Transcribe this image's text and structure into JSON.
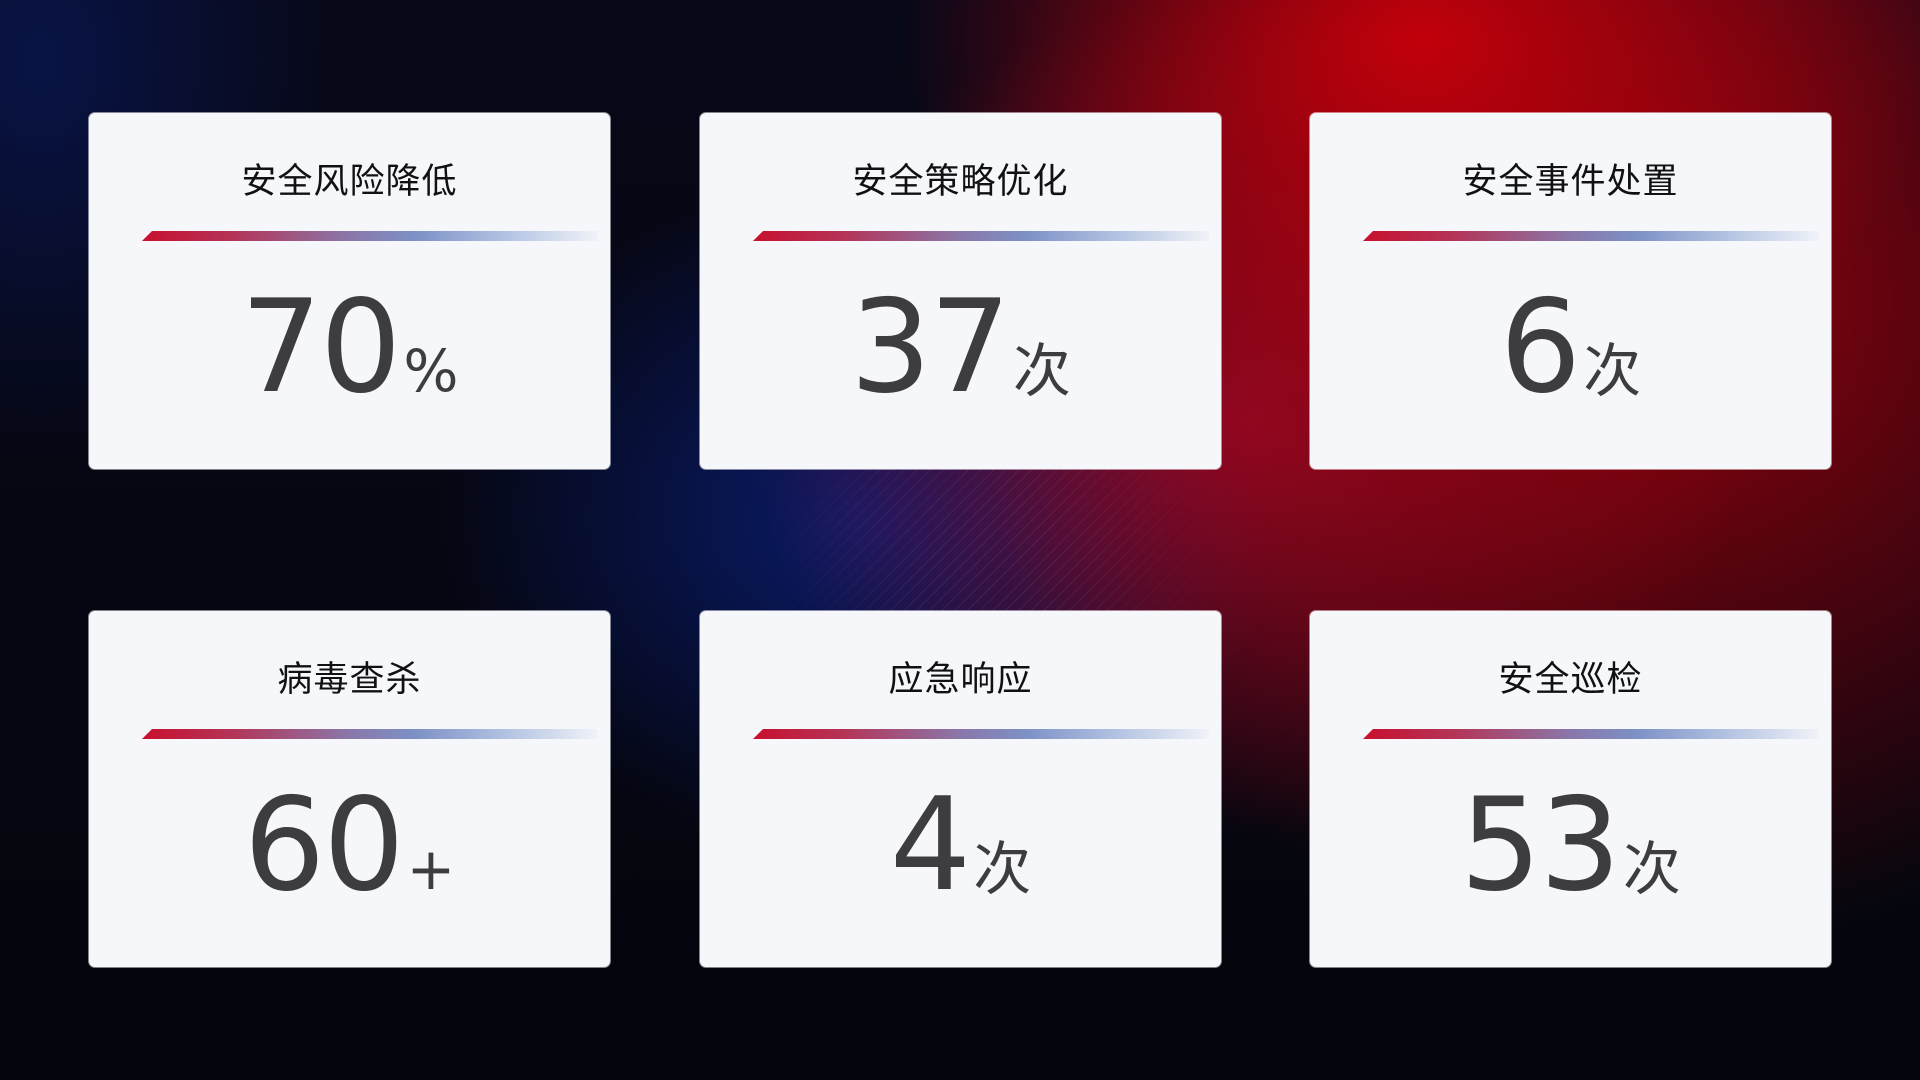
{
  "cards": [
    {
      "title": "安全风险降低",
      "value": "70",
      "unit": "%"
    },
    {
      "title": "安全策略优化",
      "value": "37",
      "unit": "次"
    },
    {
      "title": "安全事件处置",
      "value": "6",
      "unit": "次"
    },
    {
      "title": "病毒查杀",
      "value": "60",
      "unit": "+"
    },
    {
      "title": "应急响应",
      "value": "4",
      "unit": "次"
    },
    {
      "title": "安全巡检",
      "value": "53",
      "unit": "次"
    }
  ],
  "colors": {
    "accent_red": "#c8102e",
    "accent_blue": "#7d91c6",
    "card_bg": "#f5f7fb",
    "number": "#3d3d3f"
  }
}
